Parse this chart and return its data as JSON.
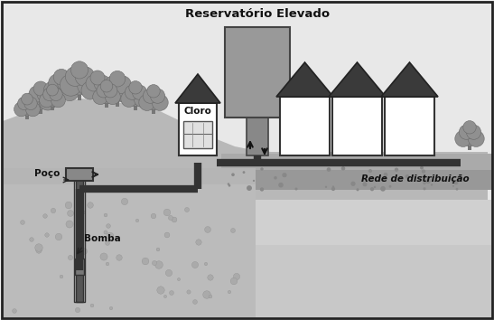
{
  "title": "Reservatório Elevado",
  "bg_color": "#f0f0f0",
  "border_color": "#222222",
  "pipe_color": "#333333",
  "dark_roof": "#3a3a3a",
  "tank_fill": "#999999",
  "col_fill": "#888888",
  "ground_top": "#b0b0b0",
  "ground_rocky": "#a0a0a0",
  "underground": "#c0c0c0",
  "sky_color": "#e8e8e8",
  "hill_color": "#b8b8b8",
  "text_cloro": "Cloro",
  "text_poco": "Poço",
  "text_bomba": "Bomba",
  "text_rede": "Rede de distribuição",
  "house_face": "#ffffff",
  "well_outer": "#606060",
  "well_inner": "#888888"
}
